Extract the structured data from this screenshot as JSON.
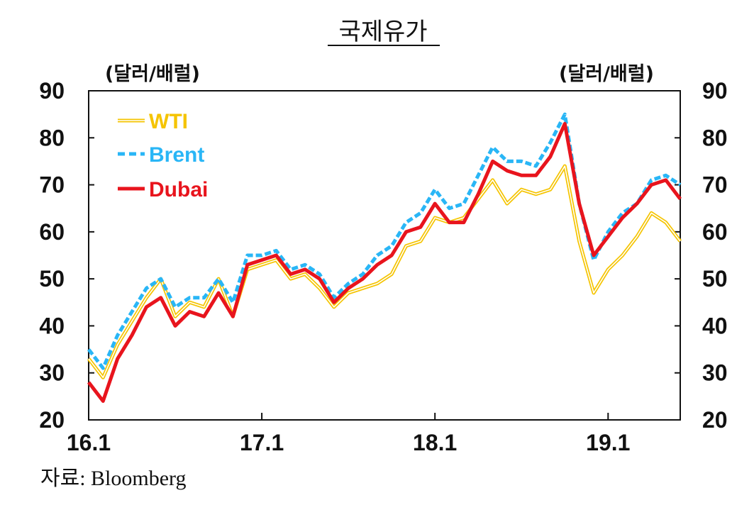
{
  "chart_data": {
    "type": "line",
    "title": "국제유가",
    "left_axis_unit": "(달러/배럴)",
    "right_axis_unit": "(달러/배럴)",
    "ylim": [
      20,
      90
    ],
    "yticks": [
      20,
      30,
      40,
      50,
      60,
      70,
      80,
      90
    ],
    "xticks": [
      "16.1",
      "17.1",
      "18.1",
      "19.1"
    ],
    "x_range": [
      "2016-01",
      "2019-06"
    ],
    "grid": false,
    "legend_position": "top-left",
    "source": "자료: Bloomberg",
    "series": [
      {
        "name": "WTI",
        "color": "#f5c400",
        "style": "double-line",
        "x": [
          "2016-01",
          "2016-02",
          "2016-03",
          "2016-04",
          "2016-05",
          "2016-06",
          "2016-07",
          "2016-08",
          "2016-09",
          "2016-10",
          "2016-11",
          "2016-12",
          "2017-01",
          "2017-02",
          "2017-03",
          "2017-04",
          "2017-05",
          "2017-06",
          "2017-07",
          "2017-08",
          "2017-09",
          "2017-10",
          "2017-11",
          "2017-12",
          "2018-01",
          "2018-02",
          "2018-03",
          "2018-04",
          "2018-05",
          "2018-06",
          "2018-07",
          "2018-08",
          "2018-09",
          "2018-10",
          "2018-11",
          "2018-12",
          "2019-01",
          "2019-02",
          "2019-03",
          "2019-04",
          "2019-05",
          "2019-06"
        ],
        "values": [
          33,
          29,
          36,
          41,
          46,
          50,
          42,
          45,
          44,
          50,
          42,
          52,
          53,
          54,
          50,
          51,
          48,
          44,
          47,
          48,
          49,
          51,
          57,
          58,
          63,
          62,
          63,
          67,
          71,
          66,
          69,
          68,
          69,
          74,
          58,
          47,
          52,
          55,
          59,
          64,
          62,
          58
        ]
      },
      {
        "name": "Brent",
        "color": "#29b6f6",
        "style": "dashed",
        "x": [
          "2016-01",
          "2016-02",
          "2016-03",
          "2016-04",
          "2016-05",
          "2016-06",
          "2016-07",
          "2016-08",
          "2016-09",
          "2016-10",
          "2016-11",
          "2016-12",
          "2017-01",
          "2017-02",
          "2017-03",
          "2017-04",
          "2017-05",
          "2017-06",
          "2017-07",
          "2017-08",
          "2017-09",
          "2017-10",
          "2017-11",
          "2017-12",
          "2018-01",
          "2018-02",
          "2018-03",
          "2018-04",
          "2018-05",
          "2018-06",
          "2018-07",
          "2018-08",
          "2018-09",
          "2018-10",
          "2018-11",
          "2018-12",
          "2019-01",
          "2019-02",
          "2019-03",
          "2019-04",
          "2019-05",
          "2019-06"
        ],
        "values": [
          35,
          31,
          38,
          43,
          48,
          50,
          44,
          46,
          46,
          50,
          45,
          55,
          55,
          56,
          52,
          53,
          51,
          46,
          49,
          51,
          55,
          57,
          62,
          64,
          69,
          65,
          66,
          72,
          78,
          75,
          75,
          74,
          79,
          85,
          66,
          54,
          60,
          64,
          66,
          71,
          72,
          70
        ]
      },
      {
        "name": "Dubai",
        "color": "#e8141d",
        "style": "solid",
        "x": [
          "2016-01",
          "2016-02",
          "2016-03",
          "2016-04",
          "2016-05",
          "2016-06",
          "2016-07",
          "2016-08",
          "2016-09",
          "2016-10",
          "2016-11",
          "2016-12",
          "2017-01",
          "2017-02",
          "2017-03",
          "2017-04",
          "2017-05",
          "2017-06",
          "2017-07",
          "2017-08",
          "2017-09",
          "2017-10",
          "2017-11",
          "2017-12",
          "2018-01",
          "2018-02",
          "2018-03",
          "2018-04",
          "2018-05",
          "2018-06",
          "2018-07",
          "2018-08",
          "2018-09",
          "2018-10",
          "2018-11",
          "2018-12",
          "2019-01",
          "2019-02",
          "2019-03",
          "2019-04",
          "2019-05",
          "2019-06"
        ],
        "values": [
          28,
          24,
          33,
          38,
          44,
          46,
          40,
          43,
          42,
          47,
          42,
          53,
          54,
          55,
          51,
          52,
          50,
          45,
          48,
          50,
          53,
          55,
          60,
          61,
          66,
          62,
          62,
          68,
          75,
          73,
          72,
          72,
          76,
          83,
          66,
          55,
          59,
          63,
          66,
          70,
          71,
          67
        ]
      }
    ]
  }
}
